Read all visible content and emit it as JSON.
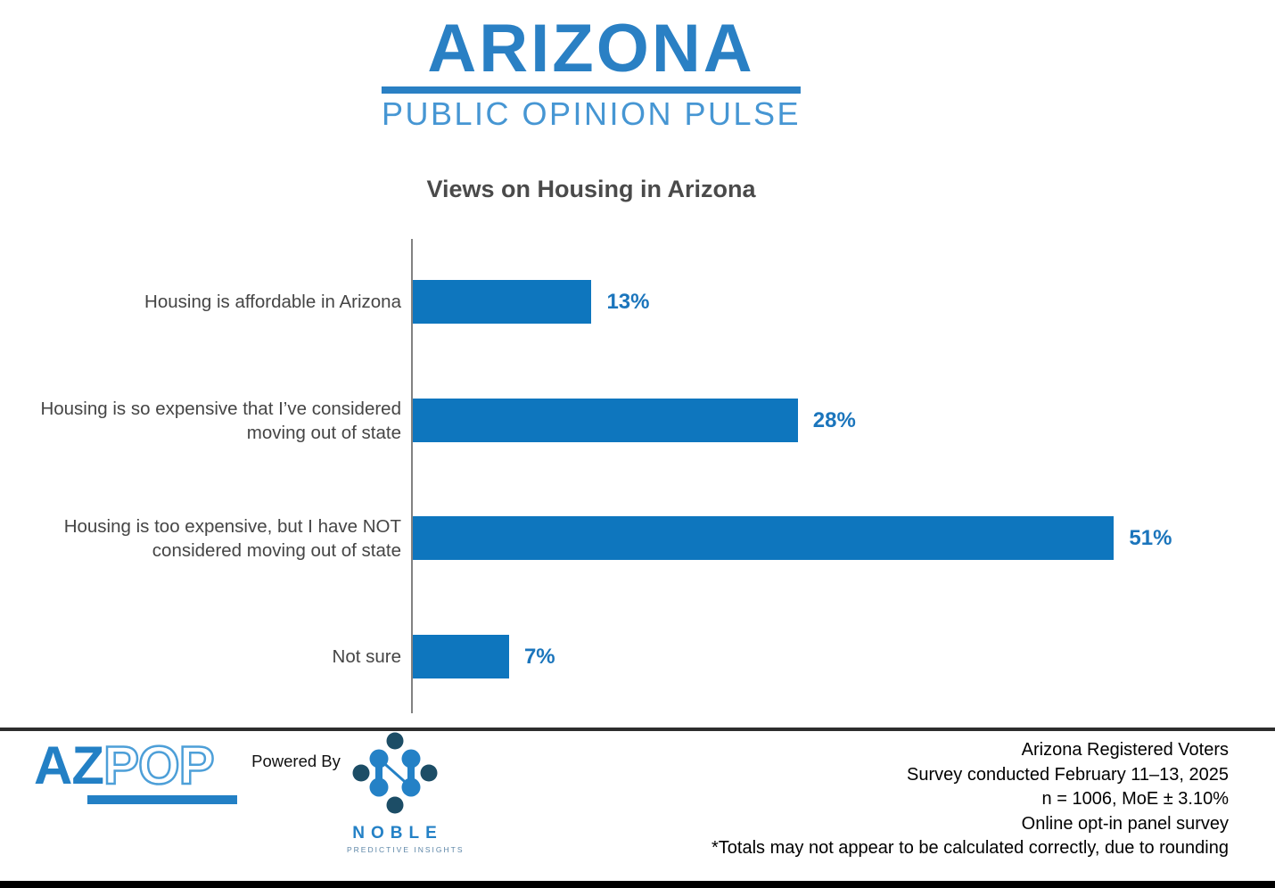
{
  "header": {
    "brand_title": "ARIZONA",
    "brand_subtitle": "PUBLIC OPINION PULSE"
  },
  "chart_data": {
    "type": "bar",
    "orientation": "horizontal",
    "title": "Views on Housing in Arizona",
    "categories": [
      "Housing is affordable in Arizona",
      "Housing is so expensive that I’ve considered moving out of state",
      "Housing is too expensive, but I have NOT considered moving out of state",
      "Not sure"
    ],
    "values": [
      13,
      28,
      51,
      7
    ],
    "value_labels": [
      "13%",
      "28%",
      "51%",
      "7%"
    ],
    "xlabel": "",
    "ylabel": "",
    "xlim": [
      0,
      62
    ],
    "grid": false,
    "legend": false,
    "bar_color": "#0E76BE",
    "value_label_color": "#1B75BC",
    "category_label_color": "#454545",
    "axis_line_color": "#828282"
  },
  "footer": {
    "azpop": {
      "az": "AZ",
      "pop": "POP"
    },
    "powered_by": "Powered By",
    "noble": {
      "icon": "noble-network-icon",
      "name": "NOBLE",
      "tagline": "PREDICTIVE INSIGHTS",
      "navy_color": "#1C4D66",
      "blue_color": "#2481C6"
    },
    "source_lines": [
      "Arizona Registered Voters",
      "Survey conducted February 11–13, 2025",
      "n = 1006, MoE ± 3.10%",
      "Online opt-in panel survey",
      "*Totals may not appear to be calculated correctly, due to rounding"
    ]
  }
}
